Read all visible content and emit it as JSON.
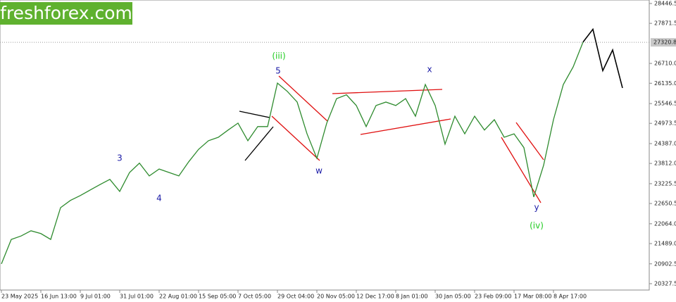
{
  "watermark": "freshforex.com",
  "chart_data": {
    "type": "line",
    "categories": [
      "23 May 2025",
      null,
      null,
      null,
      "16 Jun 13:00",
      null,
      null,
      null,
      "9 Jul 01:00",
      null,
      null,
      null,
      "31 Jul 01:00",
      null,
      null,
      null,
      "22 Aug 01:00",
      null,
      null,
      null,
      "15 Sep 05:00",
      null,
      null,
      null,
      "7 Oct 05:00",
      null,
      null,
      null,
      "29 Oct 04:00",
      null,
      null,
      null,
      "20 Nov 05:00",
      null,
      null,
      null,
      "12 Dec 17:00",
      null,
      null,
      null,
      "8 Jan 01:00",
      null,
      null,
      null,
      "30 Jan 05:00",
      null,
      null,
      null,
      "23 Feb 09:00",
      null,
      null,
      null,
      "17 Mar 08:00",
      null,
      null,
      null,
      "8 Apr 17:00",
      null,
      null,
      null,
      null,
      null,
      null,
      null
    ],
    "series": [
      {
        "color": "#2e8b2e",
        "values": [
          20900,
          21610,
          21710,
          21860,
          21780,
          21610,
          22530,
          22740,
          22880,
          23040,
          23200,
          23350,
          23000,
          23550,
          23820,
          23450,
          23650,
          23550,
          23450,
          23860,
          24220,
          24470,
          24570,
          24780,
          24980,
          24470,
          24880,
          24880,
          26140,
          25900,
          25590,
          24670,
          23960,
          24980,
          25690,
          25800,
          25490,
          24880,
          25490,
          25590,
          25490,
          25690,
          25180,
          26100,
          25490,
          24370,
          25180,
          24670,
          25180,
          24780,
          25080,
          24570,
          24670,
          24270,
          22840,
          23760,
          25080,
          26100,
          26610,
          27330,
          null,
          null,
          null,
          null
        ]
      },
      {
        "color": "#000000",
        "values": [
          null,
          null,
          null,
          null,
          null,
          null,
          null,
          null,
          null,
          null,
          null,
          null,
          null,
          null,
          null,
          null,
          null,
          null,
          null,
          null,
          null,
          null,
          null,
          null,
          null,
          null,
          null,
          null,
          null,
          null,
          null,
          null,
          null,
          null,
          null,
          null,
          null,
          null,
          null,
          null,
          null,
          null,
          null,
          null,
          null,
          null,
          null,
          null,
          null,
          null,
          null,
          null,
          null,
          null,
          null,
          null,
          null,
          null,
          null,
          27330,
          27700,
          26500,
          27100,
          26000
        ]
      }
    ],
    "ylim": [
      20143,
      28548
    ],
    "yticks": [
      28446.5,
      27871.5,
      {
        "value": 26710,
        "label": "26710.0"
      },
      {
        "value": 26135,
        "label": "26135.0"
      },
      25546.5,
      24973.5,
      {
        "value": 24387,
        "label": "24387.0"
      },
      {
        "value": 23812,
        "label": "23812.0"
      },
      23225.5,
      22650.5,
      {
        "value": 22064,
        "label": "22064.0"
      },
      {
        "value": 21489,
        "label": "21489.0"
      },
      20902.5,
      20327.5
    ],
    "current_price": 27320.8,
    "annotations": [
      {
        "text": "(iii)",
        "color": "#22cc22"
      },
      {
        "text": "5",
        "color": "#1a1aa6"
      },
      {
        "text": "3",
        "color": "#1a1aa6"
      },
      {
        "text": "4",
        "color": "#1a1aa6"
      },
      {
        "text": "w",
        "color": "#1a1aa6"
      },
      {
        "text": "x",
        "color": "#1a1aa6"
      },
      {
        "text": "y",
        "color": "#1a1aa6"
      },
      {
        "text": "(iv)",
        "color": "#22cc22"
      }
    ]
  }
}
